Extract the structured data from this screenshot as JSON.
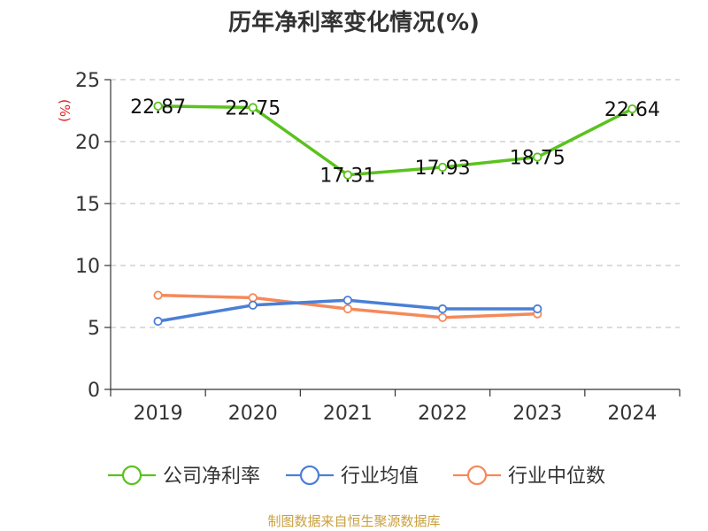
{
  "chart_data": {
    "type": "line",
    "title": "历年净利率变化情况(%)",
    "ylabel": "(%)",
    "categories": [
      "2019",
      "2020",
      "2021",
      "2022",
      "2023",
      "2024"
    ],
    "ylim": [
      0,
      25
    ],
    "yticks": [
      0,
      5,
      10,
      15,
      20,
      25
    ],
    "grid": true,
    "legend_position": "bottom",
    "series": [
      {
        "name": "公司净利率",
        "color": "#5ac21e",
        "show_labels": true,
        "values": [
          22.87,
          22.75,
          17.31,
          17.93,
          18.75,
          22.64
        ]
      },
      {
        "name": "行业均值",
        "color": "#4b7fd6",
        "show_labels": false,
        "values": [
          5.5,
          6.8,
          7.2,
          6.5,
          6.5,
          null
        ]
      },
      {
        "name": "行业中位数",
        "color": "#f5895a",
        "show_labels": false,
        "values": [
          7.6,
          7.4,
          6.5,
          5.8,
          6.1,
          null
        ]
      }
    ]
  },
  "source": "制图数据来自恒生聚源数据库"
}
